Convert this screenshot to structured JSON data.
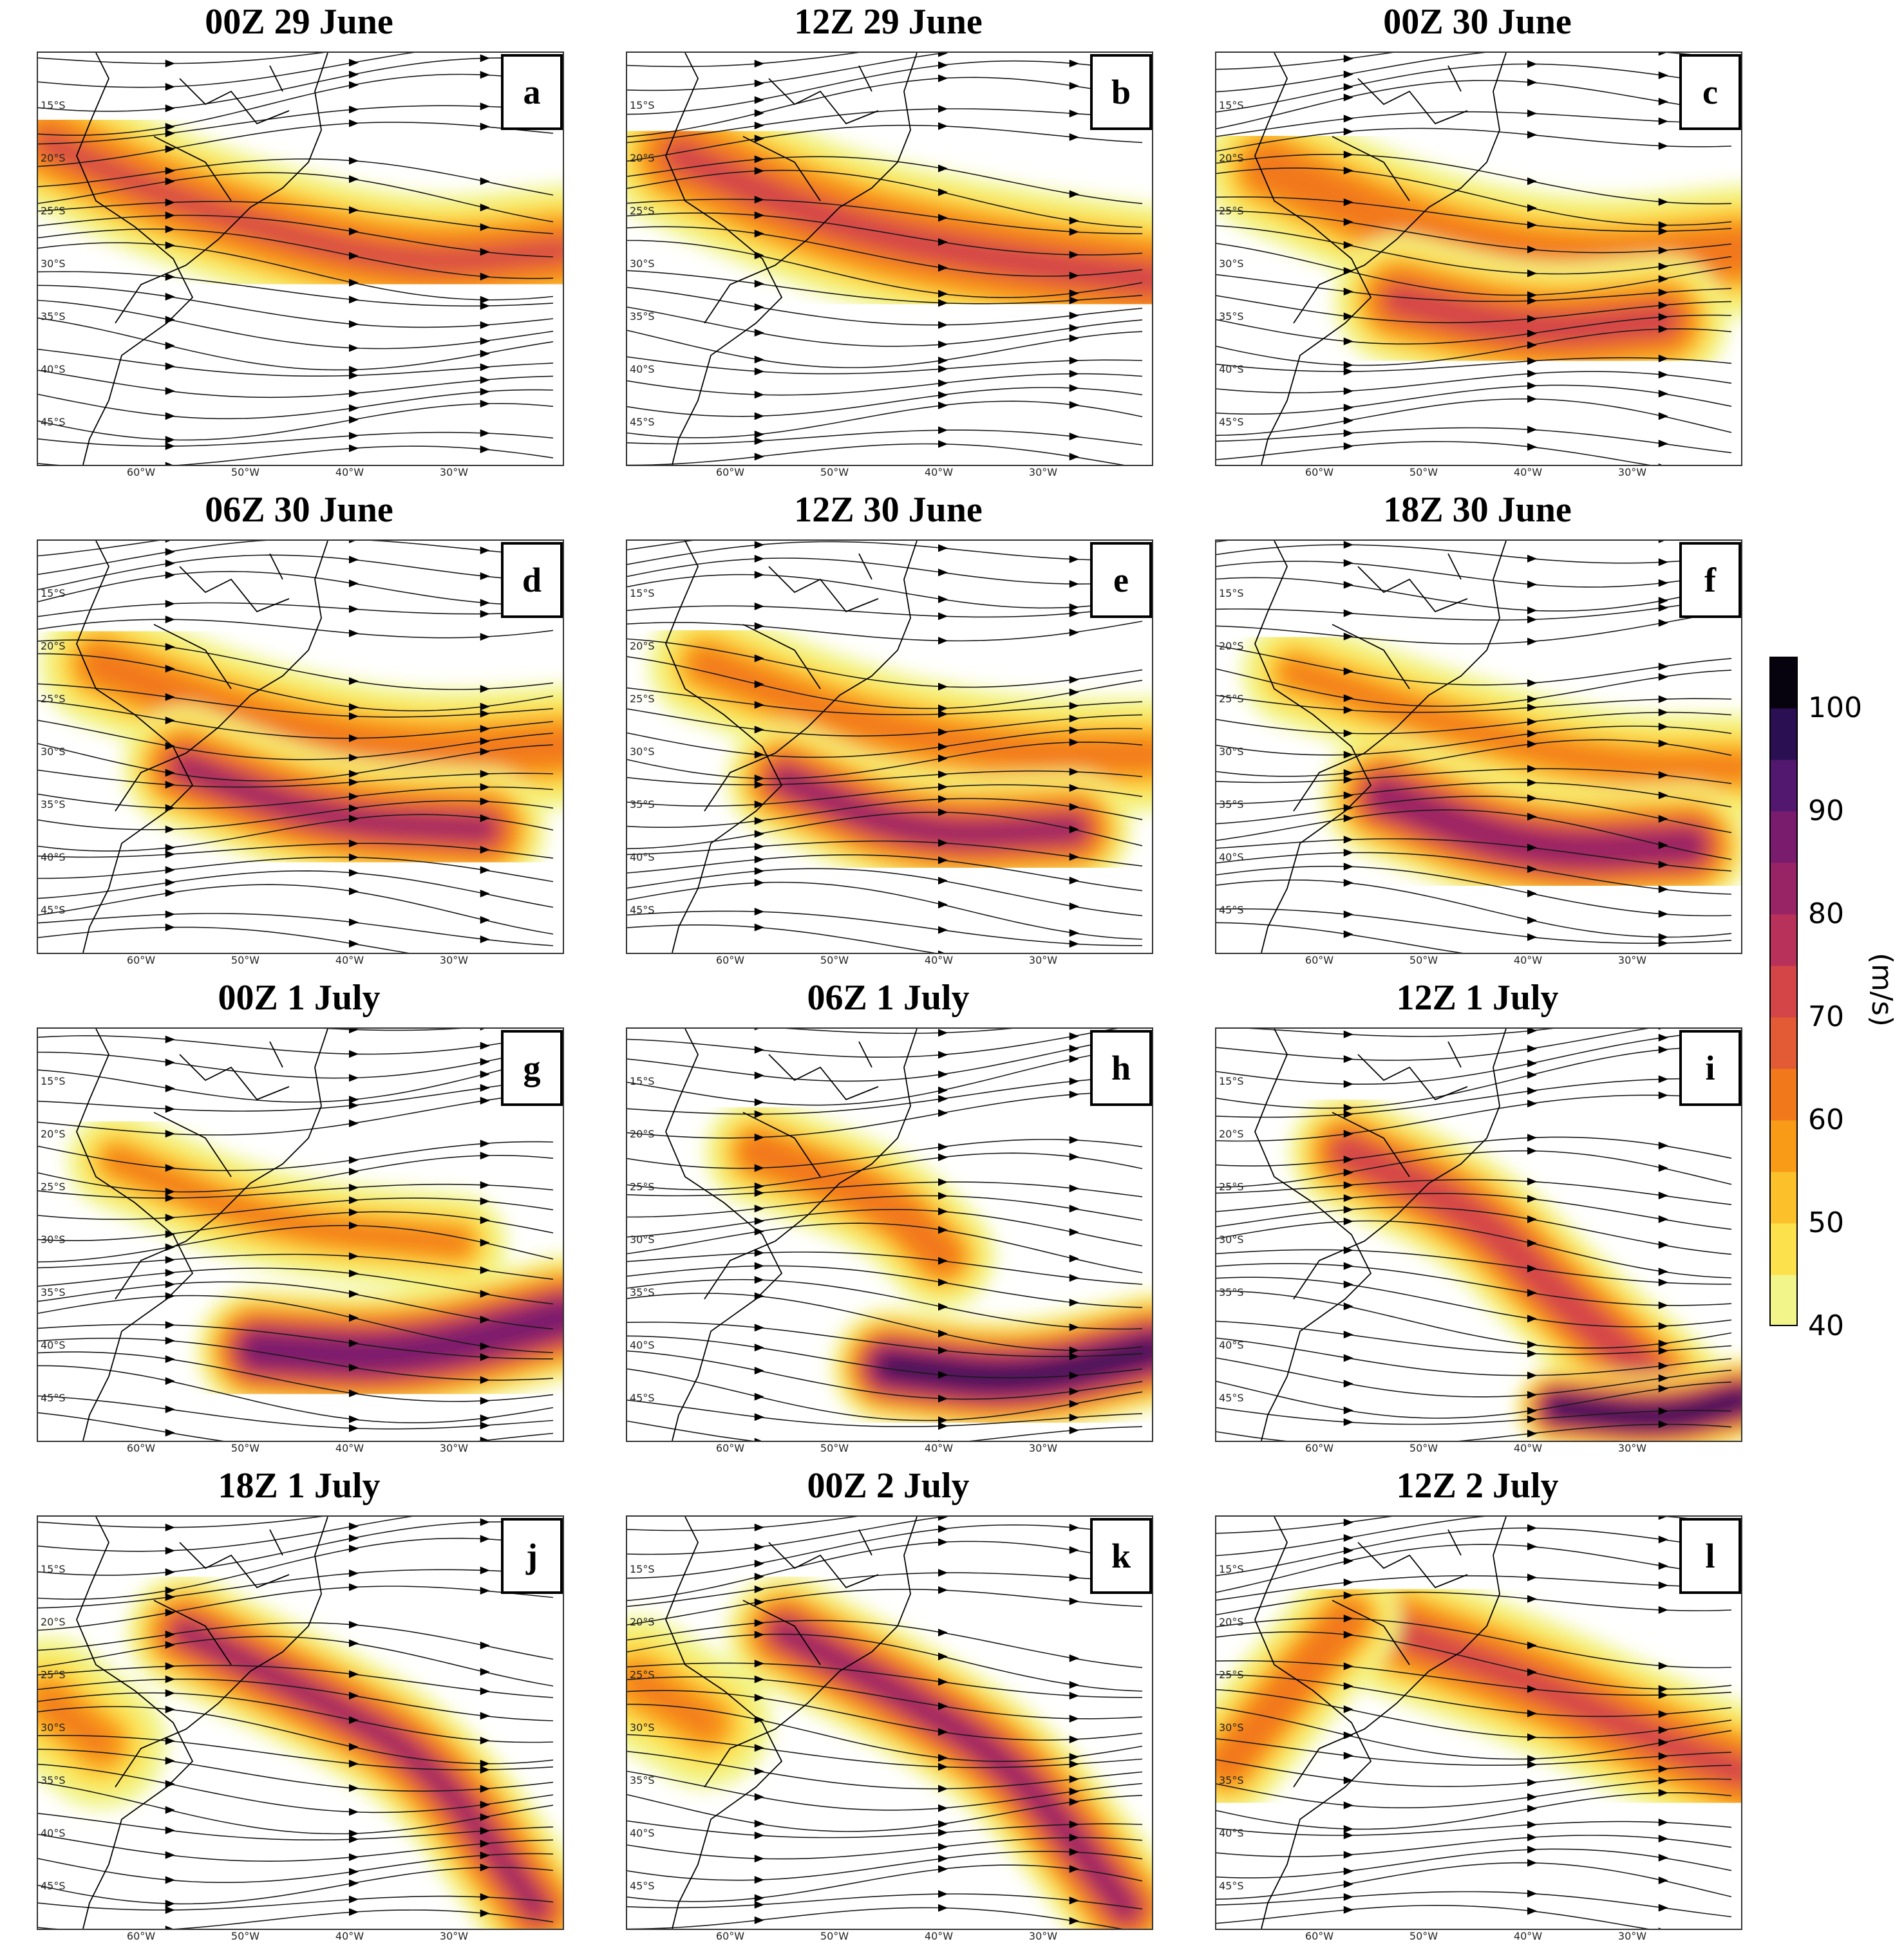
{
  "panels": [
    {
      "title": "00Z 29 June",
      "letter": "a",
      "jets": [
        {
          "pts": [
            [
              0.02,
              0.22
            ],
            [
              0.3,
              0.38
            ],
            [
              0.7,
              0.52
            ],
            [
              1.0,
              0.48
            ]
          ],
          "peak": 72,
          "width": 0.16
        }
      ]
    },
    {
      "title": "12Z 29 June",
      "letter": "b",
      "jets": [
        {
          "pts": [
            [
              0.1,
              0.25
            ],
            [
              0.4,
              0.42
            ],
            [
              0.7,
              0.5
            ],
            [
              1.0,
              0.55
            ]
          ],
          "peak": 74,
          "width": 0.18
        }
      ]
    },
    {
      "title": "00Z 30 June",
      "letter": "c",
      "jets": [
        {
          "pts": [
            [
              0.1,
              0.28
            ],
            [
              0.4,
              0.45
            ],
            [
              0.7,
              0.52
            ],
            [
              1.0,
              0.48
            ]
          ],
          "peak": 70,
          "width": 0.16
        },
        {
          "pts": [
            [
              0.35,
              0.6
            ],
            [
              0.6,
              0.68
            ],
            [
              0.85,
              0.65
            ]
          ],
          "peak": 76,
          "width": 0.16
        }
      ]
    },
    {
      "title": "06Z 30 June",
      "letter": "d",
      "jets": [
        {
          "pts": [
            [
              0.12,
              0.3
            ],
            [
              0.4,
              0.44
            ],
            [
              0.7,
              0.52
            ],
            [
              1.0,
              0.5
            ]
          ],
          "peak": 68,
          "width": 0.15
        },
        {
          "pts": [
            [
              0.28,
              0.55
            ],
            [
              0.55,
              0.68
            ],
            [
              0.85,
              0.7
            ]
          ],
          "peak": 80,
          "width": 0.15
        }
      ]
    },
    {
      "title": "12Z 30 June",
      "letter": "e",
      "jets": [
        {
          "pts": [
            [
              0.15,
              0.3
            ],
            [
              0.45,
              0.45
            ],
            [
              0.75,
              0.52
            ],
            [
              1.0,
              0.52
            ]
          ],
          "peak": 66,
          "width": 0.14
        },
        {
          "pts": [
            [
              0.3,
              0.58
            ],
            [
              0.55,
              0.72
            ],
            [
              0.85,
              0.7
            ]
          ],
          "peak": 82,
          "width": 0.14
        }
      ]
    },
    {
      "title": "18Z 30 June",
      "letter": "f",
      "jets": [
        {
          "pts": [
            [
              0.15,
              0.32
            ],
            [
              0.45,
              0.45
            ],
            [
              0.75,
              0.55
            ],
            [
              1.0,
              0.55
            ]
          ],
          "peak": 64,
          "width": 0.13
        },
        {
          "pts": [
            [
              0.32,
              0.62
            ],
            [
              0.6,
              0.76
            ],
            [
              0.9,
              0.74
            ]
          ],
          "peak": 86,
          "width": 0.15
        }
      ]
    },
    {
      "title": "00Z 1 July",
      "letter": "g",
      "jets": [
        {
          "pts": [
            [
              0.15,
              0.32
            ],
            [
              0.45,
              0.48
            ],
            [
              0.8,
              0.52
            ]
          ],
          "peak": 64,
          "width": 0.12
        },
        {
          "pts": [
            [
              0.42,
              0.78
            ],
            [
              0.7,
              0.8
            ],
            [
              1.0,
              0.7
            ]
          ],
          "peak": 92,
          "width": 0.15
        }
      ]
    },
    {
      "title": "06Z 1 July",
      "letter": "h",
      "jets": [
        {
          "pts": [
            [
              0.25,
              0.3
            ],
            [
              0.5,
              0.42
            ],
            [
              0.6,
              0.55
            ]
          ],
          "peak": 70,
          "width": 0.13
        },
        {
          "pts": [
            [
              0.5,
              0.82
            ],
            [
              0.75,
              0.86
            ],
            [
              1.0,
              0.78
            ]
          ],
          "peak": 96,
          "width": 0.14
        }
      ]
    },
    {
      "title": "12Z 1 July",
      "letter": "i",
      "jets": [
        {
          "pts": [
            [
              0.25,
              0.3
            ],
            [
              0.5,
              0.45
            ],
            [
              0.65,
              0.65
            ],
            [
              0.9,
              0.92
            ]
          ],
          "peak": 78,
          "width": 0.14
        },
        {
          "pts": [
            [
              0.65,
              0.92
            ],
            [
              0.85,
              0.95
            ],
            [
              1.0,
              0.9
            ]
          ],
          "peak": 100,
          "width": 0.1
        }
      ]
    },
    {
      "title": "18Z 1 July",
      "letter": "j",
      "jets": [
        {
          "pts": [
            [
              0.28,
              0.28
            ],
            [
              0.55,
              0.45
            ],
            [
              0.75,
              0.6
            ],
            [
              0.95,
              0.95
            ]
          ],
          "peak": 80,
          "width": 0.14
        },
        {
          "pts": [
            [
              0.02,
              0.45
            ],
            [
              0.12,
              0.55
            ]
          ],
          "peak": 64,
          "width": 0.16
        }
      ]
    },
    {
      "title": "00Z 2 July",
      "letter": "k",
      "jets": [
        {
          "pts": [
            [
              0.3,
              0.28
            ],
            [
              0.55,
              0.45
            ],
            [
              0.75,
              0.62
            ],
            [
              0.95,
              0.95
            ]
          ],
          "peak": 82,
          "width": 0.14
        },
        {
          "pts": [
            [
              0.02,
              0.4
            ],
            [
              0.15,
              0.5
            ]
          ],
          "peak": 64,
          "width": 0.16
        }
      ]
    },
    {
      "title": "12Z 2 July",
      "letter": "l",
      "jets": [
        {
          "pts": [
            [
              0.35,
              0.28
            ],
            [
              0.6,
              0.4
            ],
            [
              0.85,
              0.55
            ],
            [
              1.0,
              0.62
            ]
          ],
          "peak": 74,
          "width": 0.16
        },
        {
          "pts": [
            [
              0.02,
              0.6
            ],
            [
              0.15,
              0.4
            ],
            [
              0.25,
              0.25
            ]
          ],
          "peak": 70,
          "width": 0.13
        }
      ]
    }
  ],
  "y_ticks": [
    "15°S",
    "20°S",
    "25°S",
    "30°S",
    "35°S",
    "40°S",
    "45°S"
  ],
  "x_ticks": [
    "60°W",
    "50°W",
    "40°W",
    "30°W"
  ],
  "colorbar": {
    "ticks": [
      "40",
      "50",
      "60",
      "70",
      "80",
      "90",
      "100"
    ],
    "unit": "(m/s)",
    "range": [
      40,
      105
    ],
    "colors": [
      "#f1f58a",
      "#fde14c",
      "#fcc02a",
      "#f99b17",
      "#f2781c",
      "#e35b35",
      "#d44548",
      "#b8315a",
      "#992465",
      "#7a1c6d",
      "#521870",
      "#2a0f52",
      "#06030f"
    ]
  }
}
